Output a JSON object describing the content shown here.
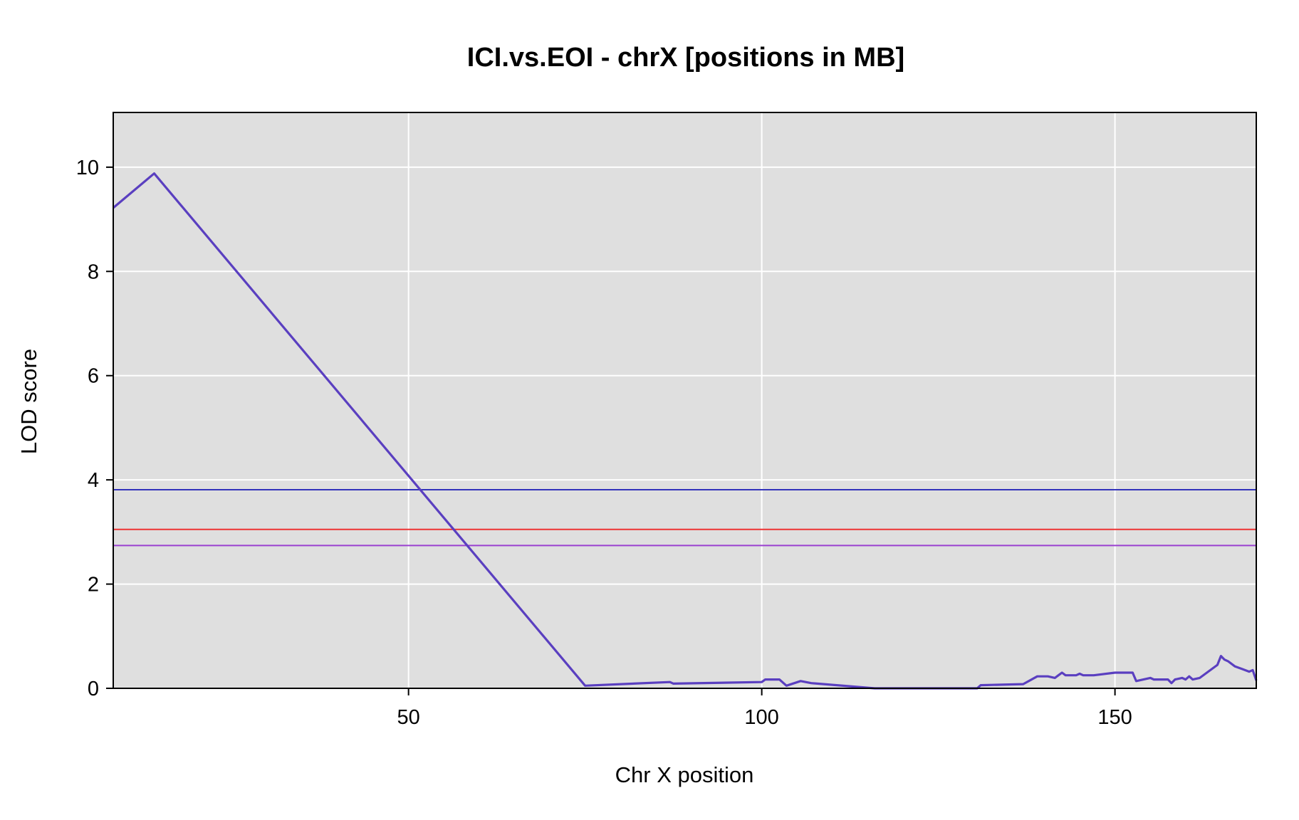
{
  "chart_data": {
    "type": "line",
    "title": "ICI.vs.EOI - chrX [positions in MB]",
    "xlabel": "Chr X position",
    "ylabel": "LOD score",
    "xlim": [
      8.2,
      170.0
    ],
    "ylim": [
      0,
      11.05
    ],
    "xticks": [
      50,
      100,
      150
    ],
    "yticks": [
      0,
      2,
      4,
      6,
      8,
      10
    ],
    "xtick_labels": [
      "50",
      "100",
      "150"
    ],
    "ytick_labels": [
      "0",
      "2",
      "4",
      "6",
      "8",
      "10"
    ],
    "grid": true,
    "colors": {
      "panel_background": "#dfdfdf",
      "grid": "#ffffff",
      "series": "#5a3fc0",
      "threshold_1": "#3333bb",
      "threshold_2": "#ee3333",
      "threshold_3": "#9a40d0"
    },
    "series": [
      {
        "x": [
          8.2,
          14.0,
          75.0,
          87.0,
          87.5,
          100.0,
          100.5,
          102.5,
          103.5,
          105.5,
          107.0,
          116.0,
          130.5,
          131.0,
          137.0,
          139.0,
          140.5,
          141.5,
          142.0,
          142.5,
          143.0,
          144.5,
          145.0,
          145.5,
          147.0,
          150.0,
          152.5,
          153.0,
          155.0,
          155.5,
          157.5,
          158.0,
          158.5,
          159.5,
          160.0,
          160.5,
          161.0,
          162.0,
          164.5,
          165.0,
          165.5,
          166.0,
          167.0,
          168.0,
          169.0,
          169.5,
          170.0
        ],
        "y": [
          9.22,
          9.88,
          0.05,
          0.12,
          0.09,
          0.12,
          0.17,
          0.17,
          0.05,
          0.14,
          0.1,
          0.0,
          0.0,
          0.06,
          0.08,
          0.23,
          0.23,
          0.2,
          0.25,
          0.3,
          0.25,
          0.25,
          0.28,
          0.25,
          0.25,
          0.3,
          0.3,
          0.14,
          0.2,
          0.17,
          0.17,
          0.1,
          0.17,
          0.2,
          0.17,
          0.23,
          0.17,
          0.2,
          0.45,
          0.62,
          0.55,
          0.52,
          0.42,
          0.37,
          0.32,
          0.35,
          0.15
        ]
      }
    ],
    "thresholds": [
      {
        "y": 3.81,
        "color_key": "threshold_1"
      },
      {
        "y": 3.05,
        "color_key": "threshold_2"
      },
      {
        "y": 2.74,
        "color_key": "threshold_3"
      }
    ]
  }
}
